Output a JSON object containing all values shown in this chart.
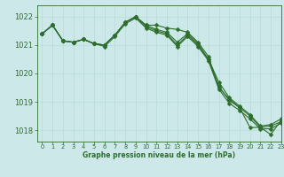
{
  "background_color": "#cce8e8",
  "grid_color": "#bbdddd",
  "line_color": "#2d6e2d",
  "title": "Graphe pression niveau de la mer (hPa)",
  "xlim": [
    -0.5,
    23
  ],
  "ylim": [
    1017.6,
    1022.4
  ],
  "yticks": [
    1018,
    1019,
    1020,
    1021,
    1022
  ],
  "xticks": [
    0,
    1,
    2,
    3,
    4,
    5,
    6,
    7,
    8,
    9,
    10,
    11,
    12,
    13,
    14,
    15,
    16,
    17,
    18,
    19,
    20,
    21,
    22,
    23
  ],
  "series": [
    [
      1021.4,
      1021.7,
      1021.15,
      1021.1,
      1021.2,
      1021.05,
      1021.0,
      1021.35,
      1021.8,
      1022.0,
      1021.7,
      1021.7,
      1021.6,
      1021.55,
      1021.45,
      1021.1,
      1020.6,
      1019.5,
      1019.1,
      1018.8,
      1018.1,
      1018.1,
      1017.85,
      1018.35
    ],
    [
      1021.4,
      1021.7,
      1021.15,
      1021.1,
      1021.2,
      1021.05,
      1021.0,
      1021.35,
      1021.8,
      1022.0,
      1021.7,
      1021.55,
      1021.45,
      1021.1,
      1021.4,
      1021.05,
      1020.5,
      1019.7,
      1019.15,
      1018.85,
      1018.55,
      1018.15,
      1018.2,
      1018.4
    ],
    [
      1021.4,
      1021.7,
      1021.15,
      1021.1,
      1021.2,
      1021.05,
      1021.0,
      1021.35,
      1021.8,
      1022.0,
      1021.65,
      1021.5,
      1021.4,
      1021.0,
      1021.35,
      1021.0,
      1020.5,
      1019.55,
      1019.05,
      1018.8,
      1018.5,
      1018.1,
      1018.15,
      1018.3
    ],
    [
      1021.4,
      1021.7,
      1021.15,
      1021.1,
      1021.2,
      1021.05,
      1020.95,
      1021.3,
      1021.75,
      1021.95,
      1021.6,
      1021.45,
      1021.35,
      1020.95,
      1021.3,
      1020.95,
      1020.45,
      1019.45,
      1018.95,
      1018.7,
      1018.4,
      1018.05,
      1018.05,
      1018.25
    ]
  ],
  "marker": "D",
  "markersize": 2.5,
  "linewidth": 0.8
}
